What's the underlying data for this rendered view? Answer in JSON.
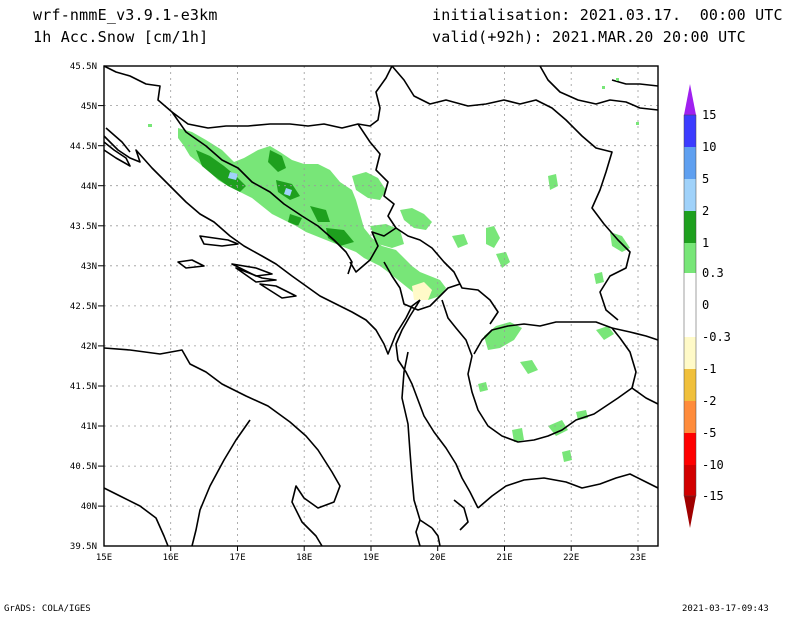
{
  "header": {
    "model": "wrf-nmmE_v3.9.1-e3km",
    "field": "1h Acc.Snow [cm/1h]",
    "init": "initialisation: 2021.03.17.  00:00 UTC",
    "valid": "valid(+92h): 2021.MAR.20 20:00 UTC"
  },
  "footer": {
    "credit": "GrADS: COLA/IGES",
    "timestamp": "2021-03-17-09:43"
  },
  "map": {
    "lat_ticks": [
      "45.5N",
      "45N",
      "44.5N",
      "44N",
      "43.5N",
      "43N",
      "42.5N",
      "42N",
      "41.5N",
      "41N",
      "40.5N",
      "40N",
      "39.5N"
    ],
    "lon_ticks": [
      "15E",
      "16E",
      "17E",
      "18E",
      "19E",
      "20E",
      "21E",
      "22E",
      "23E"
    ],
    "lat_range": [
      39.5,
      45.5
    ],
    "lon_range": [
      15,
      23.3
    ],
    "grid": "dotted"
  },
  "colorbar": {
    "labels": [
      "15",
      "10",
      "5",
      "2",
      "1",
      "0.3",
      "0",
      "-0.3",
      "-1",
      "-2",
      "-5",
      "-10",
      "-15"
    ],
    "colors": [
      "#a020f0",
      "#3c3cff",
      "#5fa0f0",
      "#a0d2fa",
      "#1ea01e",
      "#78e678",
      "#ffffff",
      "#fffac8",
      "#f0c03c",
      "#ff8c3c",
      "#ff0000",
      "#d20000",
      "#a00000",
      "#7a0000"
    ]
  },
  "colors": {
    "snow_light": "#78e678",
    "snow_mid": "#1ea01e",
    "snow_high": "#a0d2fa",
    "negative_light": "#fffac8"
  }
}
